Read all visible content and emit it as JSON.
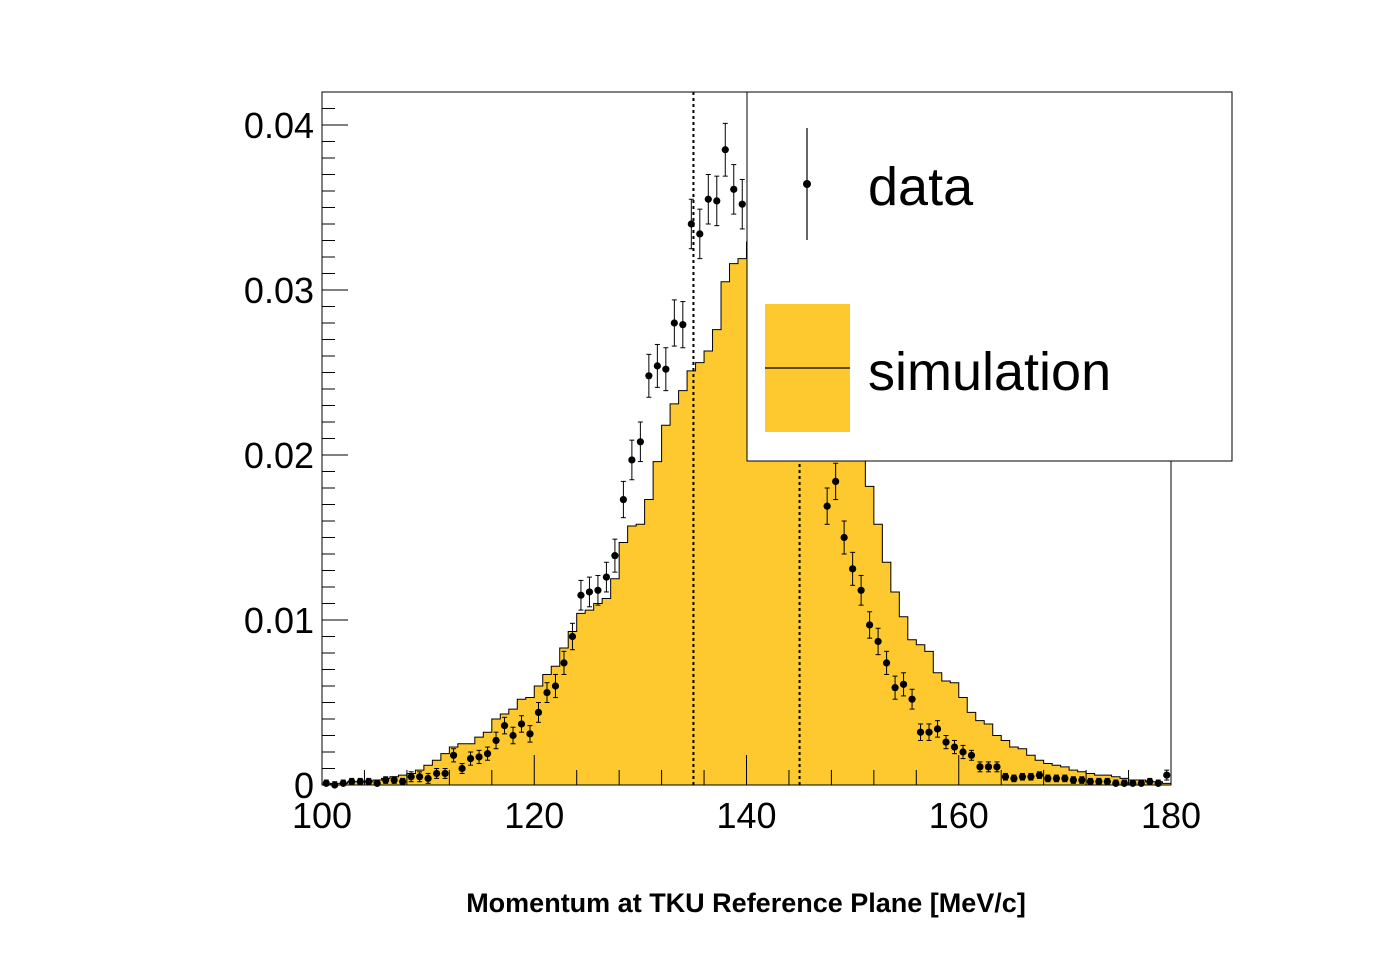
{
  "chart_data": {
    "type": "histogram",
    "title": "",
    "xlabel": "Momentum at TKU Reference Plane [MeV/c]",
    "ylabel": "",
    "xlim": [
      100,
      180
    ],
    "ylim": [
      0,
      0.042
    ],
    "bin_width": 0.8,
    "x_ticks": [
      100,
      120,
      140,
      160,
      180
    ],
    "x_tick_labels": [
      "100",
      "120",
      "140",
      "160",
      "180"
    ],
    "y_ticks": [
      0,
      0.01,
      0.02,
      0.03,
      0.04
    ],
    "y_tick_labels": [
      "0",
      "0.01",
      "0.02",
      "0.03",
      "0.04"
    ],
    "grid": false,
    "legend_position": "top-right",
    "reference_lines_x": [
      135,
      145
    ],
    "colors": {
      "simulation_fill": "#fdc92f",
      "outline": "#000000",
      "marker": "#000000"
    },
    "series": [
      {
        "name": "data",
        "kind": "points-with-errors",
        "x": [
          100.4,
          101.2,
          102.0,
          102.8,
          103.6,
          104.4,
          105.2,
          106.0,
          106.8,
          107.6,
          108.4,
          109.2,
          110.0,
          110.8,
          111.6,
          112.4,
          113.2,
          114.0,
          114.8,
          115.6,
          116.4,
          117.2,
          118.0,
          118.8,
          119.6,
          120.4,
          121.2,
          122.0,
          122.8,
          123.6,
          124.4,
          125.2,
          126.0,
          126.8,
          127.6,
          128.4,
          129.2,
          130.0,
          130.8,
          131.6,
          132.4,
          133.2,
          134.0,
          134.8,
          135.6,
          136.4,
          137.2,
          138.0,
          138.8,
          139.6,
          140.4,
          147.6,
          148.4,
          149.2,
          150.0,
          150.8,
          151.6,
          152.4,
          153.2,
          154.0,
          154.8,
          155.6,
          156.4,
          157.2,
          158.0,
          158.8,
          159.6,
          160.4,
          161.2,
          162.0,
          162.8,
          163.6,
          164.4,
          165.2,
          166.0,
          166.8,
          167.6,
          168.4,
          169.2,
          170.0,
          170.8,
          171.6,
          172.4,
          173.2,
          174.0,
          174.8,
          175.6,
          176.4,
          177.2,
          178.0,
          178.8,
          179.6
        ],
        "y": [
          0.0001,
          0.0,
          0.0001,
          0.0002,
          0.0002,
          0.0002,
          0.0001,
          0.0003,
          0.0003,
          0.0002,
          0.0005,
          0.0005,
          0.0004,
          0.0007,
          0.0007,
          0.0018,
          0.001,
          0.0016,
          0.0017,
          0.0019,
          0.0027,
          0.0036,
          0.003,
          0.0037,
          0.0031,
          0.0044,
          0.0056,
          0.006,
          0.0074,
          0.009,
          0.0115,
          0.0117,
          0.0118,
          0.0126,
          0.0139,
          0.0173,
          0.0197,
          0.0208,
          0.0248,
          0.0254,
          0.0252,
          0.028,
          0.0279,
          0.034,
          0.0334,
          0.0355,
          0.0354,
          0.0385,
          0.0361,
          0.0352,
          0.033,
          0.0169,
          0.0184,
          0.015,
          0.0131,
          0.0118,
          0.0097,
          0.0087,
          0.0074,
          0.0059,
          0.0061,
          0.0052,
          0.0032,
          0.0032,
          0.0034,
          0.0026,
          0.0023,
          0.002,
          0.0018,
          0.0011,
          0.0011,
          0.0011,
          0.0005,
          0.0004,
          0.0005,
          0.0005,
          0.0006,
          0.0004,
          0.0004,
          0.0004,
          0.0003,
          0.0003,
          0.0002,
          0.0002,
          0.0002,
          0.0001,
          0.0001,
          0.0001,
          0.0001,
          0.0002,
          0.0001,
          0.0006
        ],
        "yerr": [
          0.0002,
          0.0002,
          0.0002,
          0.0002,
          0.0002,
          0.0002,
          0.0002,
          0.0002,
          0.0002,
          0.0002,
          0.0003,
          0.0003,
          0.0003,
          0.0003,
          0.0003,
          0.0004,
          0.0003,
          0.0004,
          0.0004,
          0.0004,
          0.0005,
          0.0005,
          0.0005,
          0.0005,
          0.0005,
          0.0006,
          0.0006,
          0.0007,
          0.0007,
          0.0008,
          0.0009,
          0.0009,
          0.0009,
          0.0009,
          0.001,
          0.0011,
          0.0012,
          0.0012,
          0.0013,
          0.0013,
          0.0013,
          0.0014,
          0.0014,
          0.0015,
          0.0015,
          0.0015,
          0.0015,
          0.0016,
          0.0015,
          0.0015,
          0.0015,
          0.0011,
          0.0011,
          0.001,
          0.001,
          0.0009,
          0.0008,
          0.0008,
          0.0007,
          0.0007,
          0.0007,
          0.0006,
          0.0005,
          0.0005,
          0.0005,
          0.0004,
          0.0004,
          0.0004,
          0.0003,
          0.0003,
          0.0003,
          0.0003,
          0.0002,
          0.0002,
          0.0002,
          0.0002,
          0.0002,
          0.0002,
          0.0002,
          0.0002,
          0.0002,
          0.0002,
          0.0002,
          0.0002,
          0.0002,
          0.0002,
          0.0002,
          0.0002,
          0.0002,
          0.0002,
          0.0002,
          0.0003
        ]
      },
      {
        "name": "simulation",
        "kind": "filled-histogram",
        "x": [
          100.4,
          101.2,
          102.0,
          102.8,
          103.6,
          104.4,
          105.2,
          106.0,
          106.8,
          107.6,
          108.4,
          109.2,
          110.0,
          110.8,
          111.6,
          112.4,
          113.2,
          114.0,
          114.8,
          115.6,
          116.4,
          117.2,
          118.0,
          118.8,
          119.6,
          120.4,
          121.2,
          122.0,
          122.8,
          123.6,
          124.4,
          125.2,
          126.0,
          126.8,
          127.6,
          128.4,
          129.2,
          130.0,
          130.8,
          131.6,
          132.4,
          133.2,
          134.0,
          134.8,
          135.6,
          136.4,
          137.2,
          138.0,
          138.8,
          139.6,
          140.4,
          141.2,
          142.0,
          142.8,
          143.6,
          144.4,
          145.2,
          146.0,
          146.8,
          147.6,
          148.4,
          149.2,
          150.0,
          150.8,
          151.6,
          152.4,
          153.2,
          154.0,
          154.8,
          155.6,
          156.4,
          157.2,
          158.0,
          158.8,
          159.6,
          160.4,
          161.2,
          162.0,
          162.8,
          163.6,
          164.4,
          165.2,
          166.0,
          166.8,
          167.6,
          168.4,
          169.2,
          170.0,
          170.8,
          171.6,
          172.4,
          173.2,
          174.0,
          174.8,
          175.6,
          176.4,
          177.2,
          178.0,
          178.8,
          179.6
        ],
        "y": [
          0.0,
          0.0001,
          0.0001,
          0.0002,
          0.0002,
          0.0002,
          0.0003,
          0.0004,
          0.0005,
          0.0006,
          0.0007,
          0.0009,
          0.0012,
          0.0015,
          0.0019,
          0.0023,
          0.0025,
          0.0025,
          0.0029,
          0.0032,
          0.004,
          0.0043,
          0.0046,
          0.0052,
          0.0053,
          0.006,
          0.0067,
          0.0072,
          0.0083,
          0.0093,
          0.0104,
          0.0106,
          0.011,
          0.0113,
          0.0125,
          0.0147,
          0.0157,
          0.0158,
          0.0173,
          0.0196,
          0.0218,
          0.0231,
          0.0239,
          0.0251,
          0.0256,
          0.0263,
          0.0276,
          0.0305,
          0.0316,
          0.0319,
          0.0329,
          0.033,
          0.0341,
          0.0351,
          0.035,
          0.0342,
          0.0342,
          0.0314,
          0.0316,
          0.03,
          0.0277,
          0.0255,
          0.0235,
          0.0211,
          0.0181,
          0.0158,
          0.0135,
          0.0117,
          0.0102,
          0.0088,
          0.0085,
          0.0081,
          0.0068,
          0.0063,
          0.0062,
          0.0053,
          0.0044,
          0.0039,
          0.0037,
          0.003,
          0.0027,
          0.0023,
          0.0022,
          0.0018,
          0.0015,
          0.0013,
          0.0012,
          0.0011,
          0.0009,
          0.0008,
          0.0007,
          0.0006,
          0.0006,
          0.0005,
          0.0004,
          0.0003,
          0.0003,
          0.0002,
          0.0002,
          0.0001
        ]
      }
    ]
  }
}
